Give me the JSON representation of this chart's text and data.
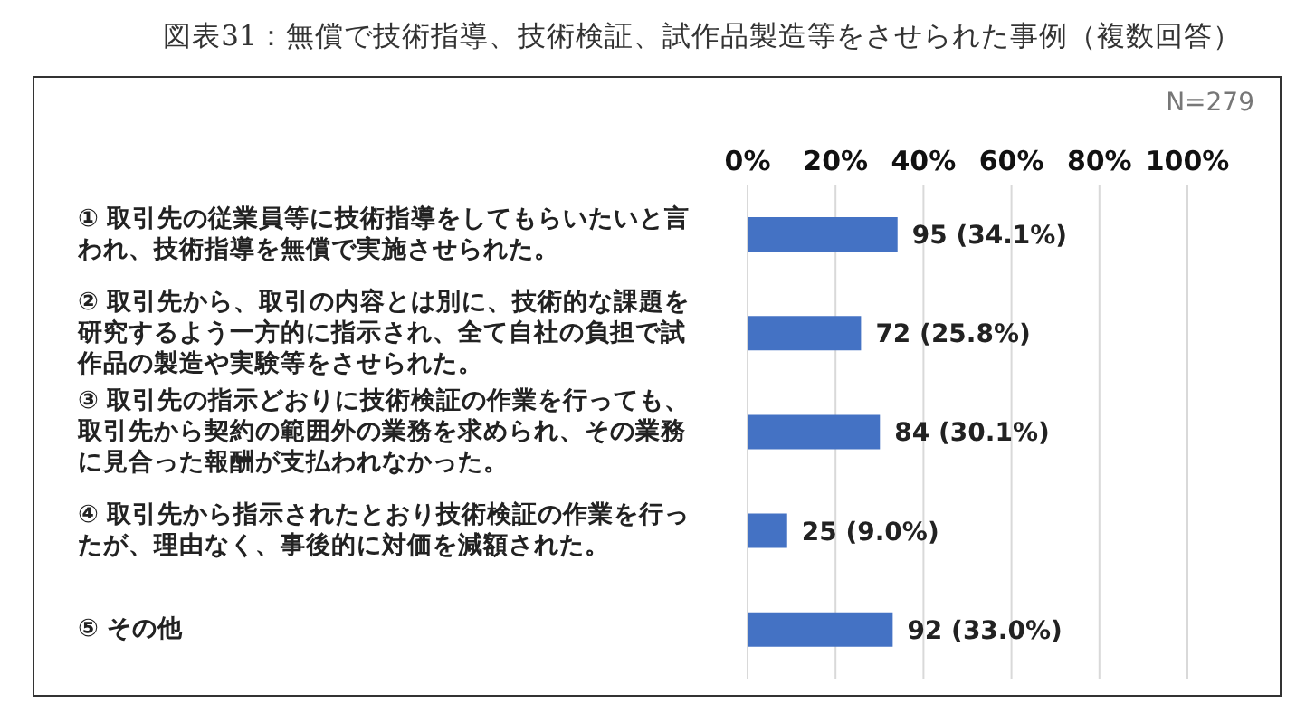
{
  "chart_data": {
    "type": "bar",
    "orientation": "horizontal",
    "title": "図表31：無償で技術指導、技術検証、試作品製造等をさせられた事例（複数回答）",
    "annotations": [
      "N=279"
    ],
    "categories": [
      "① 取引先の従業員等に技術指導をしてもらいたいと言われ、技術指導を無償で実施させられた。",
      "② 取引先から、取引の内容とは別に、技術的な課題を研究するよう一方的に指示され、全て自社の負担で試作品の製造や実験等をさせられた。",
      "③ 取引先の指示どおりに技術検証の作業を行っても、取引先から契約の範囲外の業務を求められ、その業務に見合った報酬が支払われなかった。",
      "④ 取引先から指示されたとおり技術検証の作業を行ったが、理由なく、事後的に対価を減額された。",
      "⑤ その他"
    ],
    "values": [
      34.1,
      25.8,
      30.1,
      9.0,
      33.0
    ],
    "value_labels": [
      "95 (34.1%)",
      "72 (25.8%)",
      "84 (30.1%)",
      "25 (9.0%)",
      "92 (33.0%)"
    ],
    "color": "#4472c4",
    "xlim": [
      0,
      100
    ],
    "xticks": [
      {
        "value": 0,
        "label": "0%"
      },
      {
        "value": 20,
        "label": "20%"
      },
      {
        "value": 40,
        "label": "40%"
      },
      {
        "value": 60,
        "label": "60%"
      },
      {
        "value": 80,
        "label": "80%"
      },
      {
        "value": 100,
        "label": "100%"
      }
    ],
    "grid": "x"
  }
}
